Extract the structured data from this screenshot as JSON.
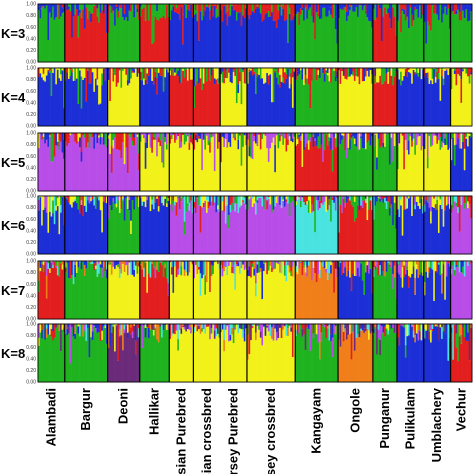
{
  "chart_data": {
    "type": "bar",
    "subtype": "stacked-admixture",
    "title": "",
    "xlabel": "",
    "ylabel": "",
    "ylim": [
      0,
      1
    ],
    "y_ticks": [
      "0.00",
      "0.20",
      "0.40",
      "0.60",
      "0.80",
      "1.00"
    ],
    "populations": [
      {
        "name": "Alambadi",
        "weight": 1.0
      },
      {
        "name": "Bargur",
        "weight": 1.6
      },
      {
        "name": "Deoni",
        "weight": 1.2
      },
      {
        "name": "Hallikar",
        "weight": 1.1
      },
      {
        "name": "iesian Purebred",
        "weight": 0.9
      },
      {
        "name": "iesian crossbred",
        "weight": 1.0
      },
      {
        "name": "ersey Purebred",
        "weight": 1.0
      },
      {
        "name": "ersey crossbred",
        "weight": 1.8
      },
      {
        "name": "Kangayam",
        "weight": 1.6
      },
      {
        "name": "Ongole",
        "weight": 1.3
      },
      {
        "name": "Punganur",
        "weight": 0.9
      },
      {
        "name": "Pulikulam",
        "weight": 1.0
      },
      {
        "name": "Umblachery",
        "weight": 1.0
      },
      {
        "name": "Vechur",
        "weight": 0.8
      }
    ],
    "cluster_colors": [
      "#e31e1e",
      "#1fb31f",
      "#1c2fd6",
      "#f2f21a",
      "#b84de8",
      "#49e3e0",
      "#f07f1a",
      "#6b2a7a"
    ],
    "panels": [
      {
        "label": "K=3",
        "dominant": [
          1,
          0,
          1,
          0,
          2,
          2,
          2,
          2,
          1,
          1,
          0,
          1,
          1,
          1
        ]
      },
      {
        "label": "K=4",
        "dominant": [
          2,
          2,
          3,
          2,
          0,
          0,
          3,
          2,
          1,
          3,
          0,
          2,
          2,
          3
        ]
      },
      {
        "label": "K=5",
        "dominant": [
          4,
          4,
          4,
          3,
          3,
          3,
          3,
          3,
          0,
          1,
          1,
          3,
          3,
          2
        ]
      },
      {
        "label": "K=6",
        "dominant": [
          2,
          2,
          1,
          2,
          4,
          4,
          4,
          4,
          5,
          0,
          1,
          2,
          2,
          4
        ]
      },
      {
        "label": "K=7",
        "dominant": [
          0,
          1,
          3,
          0,
          3,
          3,
          3,
          3,
          6,
          2,
          1,
          2,
          2,
          4
        ]
      },
      {
        "label": "K=8",
        "dominant": [
          1,
          1,
          7,
          1,
          3,
          3,
          3,
          3,
          1,
          6,
          1,
          2,
          2,
          0
        ]
      }
    ]
  }
}
